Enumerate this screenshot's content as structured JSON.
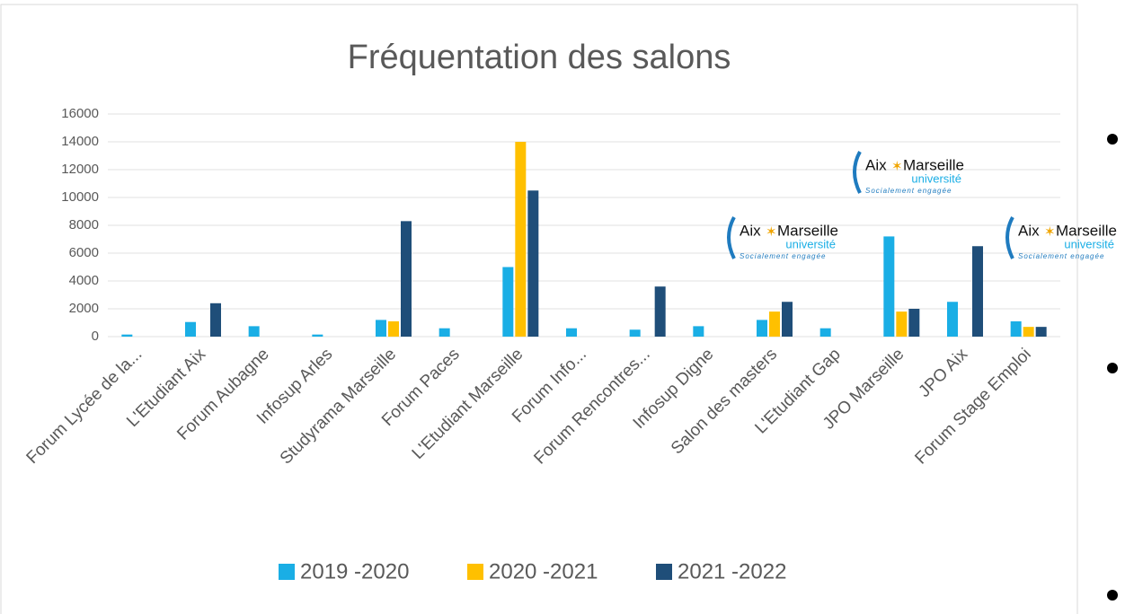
{
  "chart_data": {
    "type": "bar",
    "title": "Fréquentation des salons",
    "categories": [
      "Forum Lycée de la...",
      "L'Etudiant Aix",
      "Forum Aubagne",
      "Infosup Arles",
      "Studyrama Marseille",
      "Forum Paces",
      "L'Etudiant Marseille",
      "Forum Info...",
      "Forum Rencontres...",
      "Infosup Digne",
      "Salon des masters",
      "L'Etudiant Gap",
      "JPO Marseille",
      "JPO Aix",
      "Forum Stage Emploi"
    ],
    "series": [
      {
        "name": "2019 -2020",
        "color": "#1aaee5",
        "values": [
          150,
          1050,
          750,
          150,
          1200,
          600,
          5000,
          600,
          500,
          750,
          1200,
          600,
          7200,
          2500,
          1100
        ]
      },
      {
        "name": "2020 -2021",
        "color": "#ffc000",
        "values": [
          null,
          null,
          null,
          null,
          1100,
          null,
          14000,
          null,
          null,
          null,
          1800,
          null,
          1800,
          null,
          700
        ]
      },
      {
        "name": "2021 -2022",
        "color": "#1f4e79",
        "values": [
          null,
          2400,
          null,
          null,
          8300,
          null,
          10500,
          null,
          3600,
          null,
          2500,
          null,
          2000,
          6500,
          700
        ]
      }
    ],
    "ylim": [
      0,
      16000
    ],
    "yticks": [
      0,
      2000,
      4000,
      6000,
      8000,
      10000,
      12000,
      14000,
      16000
    ],
    "grid": true,
    "legend": "bottom",
    "logo": {
      "brand1": "Aix",
      "brand2": "Marseille",
      "sub": "université",
      "tagline": "Socialement engagée"
    }
  }
}
